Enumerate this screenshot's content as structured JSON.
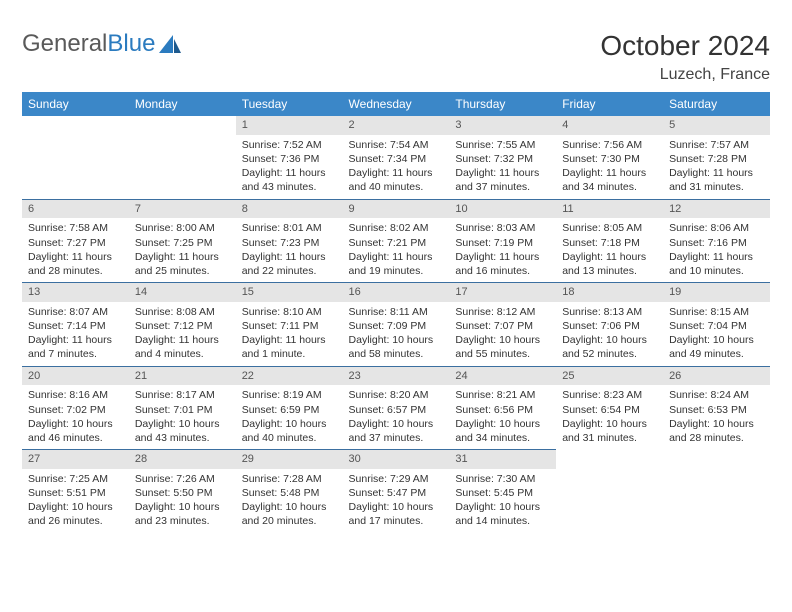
{
  "logo": {
    "textGray": "General",
    "textBlue": "Blue"
  },
  "header": {
    "title": "October 2024",
    "location": "Luzech, France"
  },
  "colors": {
    "headerBg": "#3b87c8",
    "headerText": "#ffffff",
    "rowBorder": "#3b6fa0",
    "dayNumBg": "#e5e5e5",
    "logoBlue": "#2b7bbf"
  },
  "weekdays": [
    "Sunday",
    "Monday",
    "Tuesday",
    "Wednesday",
    "Thursday",
    "Friday",
    "Saturday"
  ],
  "weeks": [
    [
      null,
      null,
      {
        "d": "1",
        "sr": "7:52 AM",
        "ss": "7:36 PM",
        "dl": "11 hours and 43 minutes."
      },
      {
        "d": "2",
        "sr": "7:54 AM",
        "ss": "7:34 PM",
        "dl": "11 hours and 40 minutes."
      },
      {
        "d": "3",
        "sr": "7:55 AM",
        "ss": "7:32 PM",
        "dl": "11 hours and 37 minutes."
      },
      {
        "d": "4",
        "sr": "7:56 AM",
        "ss": "7:30 PM",
        "dl": "11 hours and 34 minutes."
      },
      {
        "d": "5",
        "sr": "7:57 AM",
        "ss": "7:28 PM",
        "dl": "11 hours and 31 minutes."
      }
    ],
    [
      {
        "d": "6",
        "sr": "7:58 AM",
        "ss": "7:27 PM",
        "dl": "11 hours and 28 minutes."
      },
      {
        "d": "7",
        "sr": "8:00 AM",
        "ss": "7:25 PM",
        "dl": "11 hours and 25 minutes."
      },
      {
        "d": "8",
        "sr": "8:01 AM",
        "ss": "7:23 PM",
        "dl": "11 hours and 22 minutes."
      },
      {
        "d": "9",
        "sr": "8:02 AM",
        "ss": "7:21 PM",
        "dl": "11 hours and 19 minutes."
      },
      {
        "d": "10",
        "sr": "8:03 AM",
        "ss": "7:19 PM",
        "dl": "11 hours and 16 minutes."
      },
      {
        "d": "11",
        "sr": "8:05 AM",
        "ss": "7:18 PM",
        "dl": "11 hours and 13 minutes."
      },
      {
        "d": "12",
        "sr": "8:06 AM",
        "ss": "7:16 PM",
        "dl": "11 hours and 10 minutes."
      }
    ],
    [
      {
        "d": "13",
        "sr": "8:07 AM",
        "ss": "7:14 PM",
        "dl": "11 hours and 7 minutes."
      },
      {
        "d": "14",
        "sr": "8:08 AM",
        "ss": "7:12 PM",
        "dl": "11 hours and 4 minutes."
      },
      {
        "d": "15",
        "sr": "8:10 AM",
        "ss": "7:11 PM",
        "dl": "11 hours and 1 minute."
      },
      {
        "d": "16",
        "sr": "8:11 AM",
        "ss": "7:09 PM",
        "dl": "10 hours and 58 minutes."
      },
      {
        "d": "17",
        "sr": "8:12 AM",
        "ss": "7:07 PM",
        "dl": "10 hours and 55 minutes."
      },
      {
        "d": "18",
        "sr": "8:13 AM",
        "ss": "7:06 PM",
        "dl": "10 hours and 52 minutes."
      },
      {
        "d": "19",
        "sr": "8:15 AM",
        "ss": "7:04 PM",
        "dl": "10 hours and 49 minutes."
      }
    ],
    [
      {
        "d": "20",
        "sr": "8:16 AM",
        "ss": "7:02 PM",
        "dl": "10 hours and 46 minutes."
      },
      {
        "d": "21",
        "sr": "8:17 AM",
        "ss": "7:01 PM",
        "dl": "10 hours and 43 minutes."
      },
      {
        "d": "22",
        "sr": "8:19 AM",
        "ss": "6:59 PM",
        "dl": "10 hours and 40 minutes."
      },
      {
        "d": "23",
        "sr": "8:20 AM",
        "ss": "6:57 PM",
        "dl": "10 hours and 37 minutes."
      },
      {
        "d": "24",
        "sr": "8:21 AM",
        "ss": "6:56 PM",
        "dl": "10 hours and 34 minutes."
      },
      {
        "d": "25",
        "sr": "8:23 AM",
        "ss": "6:54 PM",
        "dl": "10 hours and 31 minutes."
      },
      {
        "d": "26",
        "sr": "8:24 AM",
        "ss": "6:53 PM",
        "dl": "10 hours and 28 minutes."
      }
    ],
    [
      {
        "d": "27",
        "sr": "7:25 AM",
        "ss": "5:51 PM",
        "dl": "10 hours and 26 minutes."
      },
      {
        "d": "28",
        "sr": "7:26 AM",
        "ss": "5:50 PM",
        "dl": "10 hours and 23 minutes."
      },
      {
        "d": "29",
        "sr": "7:28 AM",
        "ss": "5:48 PM",
        "dl": "10 hours and 20 minutes."
      },
      {
        "d": "30",
        "sr": "7:29 AM",
        "ss": "5:47 PM",
        "dl": "10 hours and 17 minutes."
      },
      {
        "d": "31",
        "sr": "7:30 AM",
        "ss": "5:45 PM",
        "dl": "10 hours and 14 minutes."
      },
      null,
      null
    ]
  ],
  "labels": {
    "sunrise": "Sunrise: ",
    "sunset": "Sunset: ",
    "daylight": "Daylight: "
  }
}
